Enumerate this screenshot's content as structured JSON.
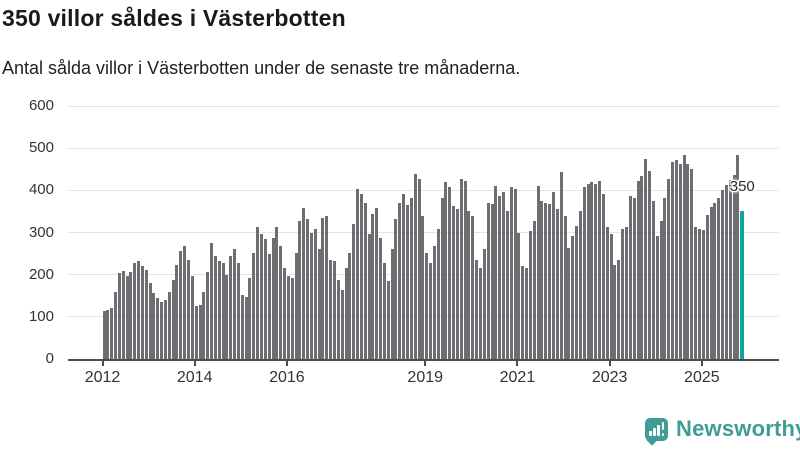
{
  "header": {
    "title": "350 villor såldes i Västerbotten",
    "subtitle": "Antal sålda villor i Västerbotten under de senaste tre månaderna."
  },
  "colors": {
    "bar": "#6d6d72",
    "highlight": "#0ba79c",
    "grid": "#e4e4e4",
    "axis": "#4d4d4d",
    "tick_text": "#333333",
    "title_text": "#1a1a1a",
    "subtitle_text": "#222222",
    "brand": "#3f9d95"
  },
  "chart_data": {
    "type": "bar",
    "title": "350 villor såldes i Västerbotten",
    "subtitle": "Antal sålda villor i Västerbotten under de senaste tre månaderna.",
    "unit": "sålda villor (rullande tre månader)",
    "start_year": 2012,
    "start_month": 1,
    "frequency": "monthly",
    "ylim": [
      0,
      600
    ],
    "y_ticks": [
      0,
      100,
      200,
      300,
      400,
      500,
      600
    ],
    "grid": "horizontal",
    "x_ticks": [
      {
        "label": "2012",
        "month_index": 0
      },
      {
        "label": "2014",
        "month_index": 24
      },
      {
        "label": "2016",
        "month_index": 48
      },
      {
        "label": "2019",
        "month_index": 84
      },
      {
        "label": "2021",
        "month_index": 108
      },
      {
        "label": "2023",
        "month_index": 132
      },
      {
        "label": "2025",
        "month_index": 156
      }
    ],
    "values": [
      113,
      117,
      121,
      160,
      205,
      208,
      196,
      206,
      228,
      232,
      221,
      210,
      180,
      156,
      144,
      136,
      139,
      160,
      188,
      224,
      256,
      268,
      236,
      196,
      126,
      127,
      158,
      206,
      276,
      244,
      233,
      228,
      200,
      244,
      260,
      228,
      152,
      148,
      192,
      252,
      312,
      296,
      284,
      248,
      288,
      312,
      268,
      216,
      196,
      192,
      252,
      327,
      359,
      331,
      300,
      308,
      260,
      335,
      339,
      236,
      232,
      188,
      164,
      216,
      252,
      320,
      403,
      391,
      371,
      296,
      343,
      359,
      288,
      228,
      184,
      260,
      331,
      371,
      391,
      365,
      383,
      439,
      427,
      339,
      252,
      228,
      268,
      308,
      383,
      419,
      407,
      363,
      355,
      427,
      423,
      351,
      339,
      236,
      216,
      260,
      371,
      367,
      411,
      387,
      395,
      351,
      407,
      403,
      300,
      220,
      216,
      304,
      327,
      411,
      375,
      371,
      367,
      395,
      355,
      443,
      339,
      264,
      292,
      316,
      351,
      407,
      415,
      419,
      415,
      423,
      391,
      312,
      296,
      224,
      236,
      308,
      312,
      387,
      383,
      423,
      435,
      475,
      447,
      375,
      292,
      327,
      383,
      427,
      467,
      471,
      463,
      483,
      463,
      451,
      312,
      308,
      305,
      341,
      361,
      371,
      381,
      400,
      412,
      424,
      436,
      483,
      350
    ],
    "highlight_last_bar": true,
    "annotation": {
      "text": "350",
      "attached_to": "last-bar"
    }
  },
  "footer": {
    "brand": "Newsworthy",
    "logo_icon": "bar-chart-speech-bubble-icon"
  }
}
